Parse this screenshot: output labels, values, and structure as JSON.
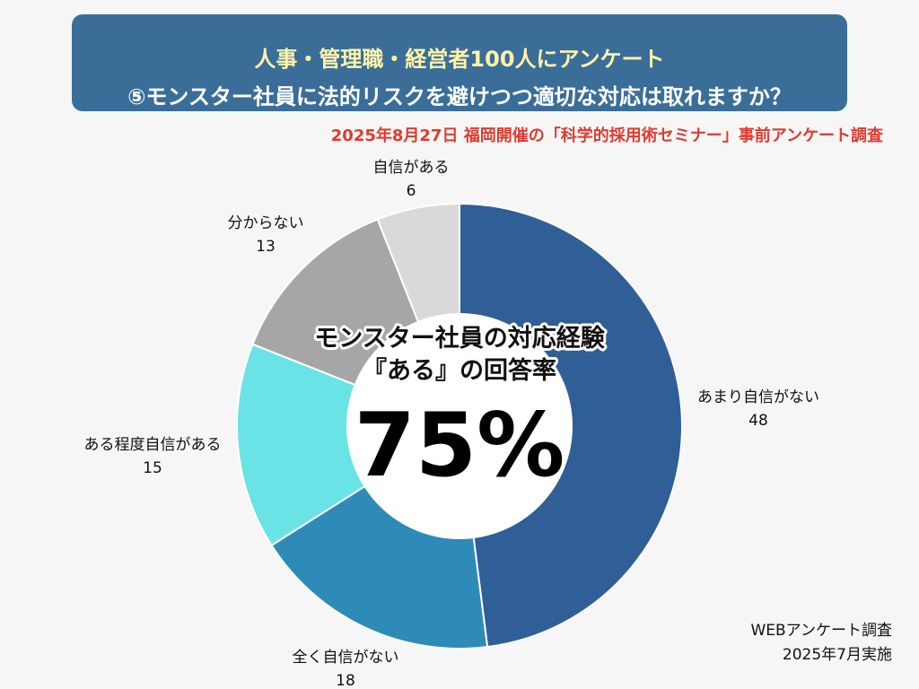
{
  "header": {
    "title_line1": "人事・管理職・経営者100人にアンケート",
    "title_line2": "⑤モンスター社員に法的リスクを避けつつ適切な対応は取れますか？",
    "subtitle": "2025年8月27日 福岡開催の「科学的採用術セミナー」事前アンケート調査"
  },
  "center": {
    "line1": "モンスター社員の対応経験",
    "line2": "『ある』の回答率",
    "value": "75%"
  },
  "footnote": {
    "line1": "WEBアンケート調査",
    "line2": "2025年7月実施"
  },
  "chart_data": {
    "type": "pie",
    "categories": [
      "あまり自信がない",
      "全く自信がない",
      "ある程度自信がある",
      "分からない",
      "自信がある"
    ],
    "values": [
      48,
      18,
      15,
      13,
      6
    ],
    "colors": [
      "#2f5f96",
      "#2e8bb7",
      "#6ae3e6",
      "#a6a6a6",
      "#d9d9d9"
    ],
    "donut": true
  }
}
